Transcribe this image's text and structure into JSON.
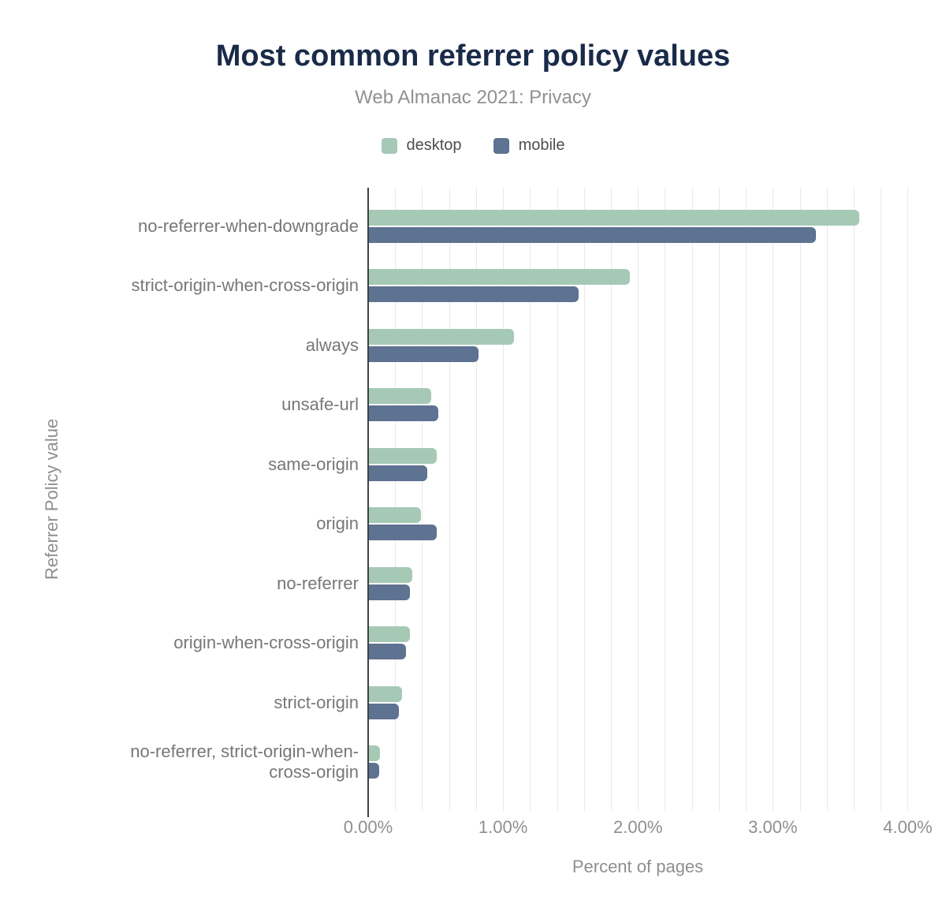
{
  "chart_data": {
    "type": "bar",
    "orientation": "horizontal",
    "title": "Most common referrer policy values",
    "subtitle": "Web Almanac 2021: Privacy",
    "xlabel": "Percent of pages",
    "ylabel": "Referrer Policy value",
    "unit": "%",
    "categories": [
      "no-referrer-when-downgrade",
      "strict-origin-when-cross-origin",
      "always",
      "unsafe-url",
      "same-origin",
      "origin",
      "no-referrer",
      "origin-when-cross-origin",
      "strict-origin",
      "no-referrer, strict-origin-when-cross-origin"
    ],
    "series": [
      {
        "name": "desktop",
        "color": "#a6c9b6",
        "values": [
          3.64,
          1.94,
          1.08,
          0.47,
          0.51,
          0.39,
          0.33,
          0.31,
          0.25,
          0.09
        ]
      },
      {
        "name": "mobile",
        "color": "#5e7291",
        "values": [
          3.32,
          1.56,
          0.82,
          0.52,
          0.44,
          0.51,
          0.31,
          0.28,
          0.23,
          0.08
        ]
      }
    ],
    "xlim": [
      0,
      4.12
    ],
    "xticks": [
      {
        "value": 0,
        "label": "0.00%"
      },
      {
        "value": 1,
        "label": "1.00%"
      },
      {
        "value": 2,
        "label": "2.00%"
      },
      {
        "value": 3,
        "label": "3.00%"
      },
      {
        "value": 4,
        "label": "4.00%"
      }
    ],
    "grid": {
      "step": 0.2,
      "max": 4.0,
      "visible": true
    },
    "legend_position": "top",
    "colors": {
      "title": "#1a2b49",
      "subtitle": "#8f9193",
      "axis_line": "#3f4247",
      "gridline": "#e9e9e9",
      "labels": "#757779",
      "ticks": "#8d8f91"
    }
  }
}
